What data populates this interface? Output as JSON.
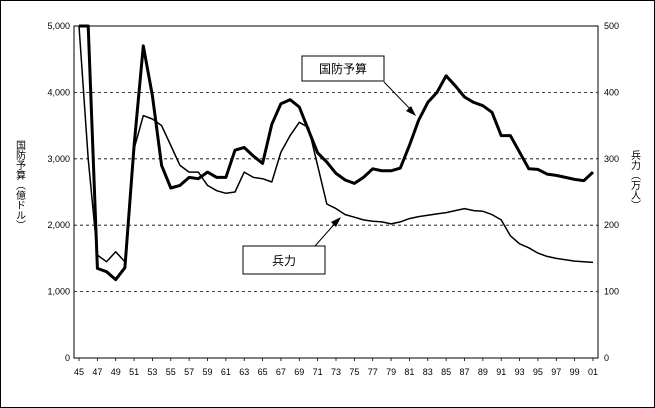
{
  "chart_data": {
    "type": "line",
    "categories": [
      "45",
      "47",
      "49",
      "51",
      "53",
      "55",
      "57",
      "59",
      "61",
      "63",
      "65",
      "67",
      "69",
      "71",
      "73",
      "75",
      "77",
      "79",
      "81",
      "83",
      "85",
      "87",
      "89",
      "91",
      "93",
      "95",
      "97",
      "99",
      "01"
    ],
    "x": [
      1945,
      1946,
      1947,
      1948,
      1949,
      1950,
      1951,
      1952,
      1953,
      1954,
      1955,
      1956,
      1957,
      1958,
      1959,
      1960,
      1961,
      1962,
      1963,
      1964,
      1965,
      1966,
      1967,
      1968,
      1969,
      1970,
      1971,
      1972,
      1973,
      1974,
      1975,
      1976,
      1977,
      1978,
      1979,
      1980,
      1981,
      1982,
      1983,
      1984,
      1985,
      1986,
      1987,
      1988,
      1989,
      1990,
      1991,
      1992,
      1993,
      1994,
      1995,
      1996,
      1997,
      1998,
      1999,
      2000,
      2001
    ],
    "series": [
      {
        "name": "国防予算",
        "axis": "left",
        "values": [
          5000,
          5000,
          1350,
          1300,
          1180,
          1360,
          3200,
          4700,
          3950,
          2900,
          2560,
          2600,
          2720,
          2700,
          2800,
          2720,
          2720,
          3130,
          3170,
          3040,
          2930,
          3520,
          3830,
          3890,
          3780,
          3430,
          3090,
          2950,
          2780,
          2680,
          2630,
          2720,
          2850,
          2820,
          2820,
          2860,
          3200,
          3580,
          3850,
          4000,
          4250,
          4100,
          3930,
          3850,
          3800,
          3700,
          3350,
          3350,
          3100,
          2850,
          2840,
          2770,
          2750,
          2720,
          2690,
          2670,
          2800
        ]
      },
      {
        "name": "兵力",
        "axis": "right",
        "values": [
          500,
          300,
          155,
          145,
          160,
          145,
          315,
          365,
          360,
          350,
          320,
          290,
          280,
          280,
          260,
          252,
          248,
          250,
          280,
          272,
          270,
          265,
          310,
          335,
          355,
          347,
          290,
          232,
          225,
          216,
          212,
          208,
          206,
          205,
          202,
          205,
          210,
          213,
          215,
          217,
          219,
          222,
          225,
          222,
          221,
          216,
          208,
          184,
          172,
          166,
          158,
          153,
          150,
          148,
          146,
          145,
          144
        ]
      }
    ],
    "y_left_label": "国防予算（億ドル）",
    "y_right_label": "兵力（万人）",
    "y_left_lim": [
      0,
      5000
    ],
    "y_right_lim": [
      0,
      500
    ],
    "y_left_ticks": [
      "0",
      "1,000",
      "2,000",
      "3,000",
      "4,000",
      "5,000"
    ],
    "y_right_ticks": [
      "0",
      "100",
      "200",
      "300",
      "400",
      "500"
    ],
    "grid": "horizontal-dashed",
    "colors": {
      "line": "#000000",
      "grid": "#000000"
    }
  },
  "callouts": {
    "budget": "国防予算",
    "troops": "兵力"
  }
}
